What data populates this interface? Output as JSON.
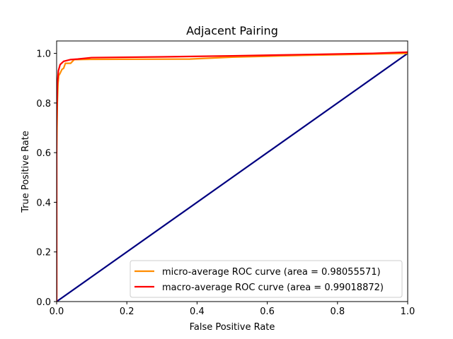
{
  "chart_data": {
    "type": "line",
    "title": "Adjacent Pairing",
    "xlabel": "False Positive Rate",
    "ylabel": "True Positive Rate",
    "xlim": [
      0.0,
      1.0
    ],
    "ylim": [
      0.0,
      1.05
    ],
    "x_ticks": [
      "0.0",
      "0.2",
      "0.4",
      "0.6",
      "0.8",
      "1.0"
    ],
    "y_ticks": [
      "0.0",
      "0.2",
      "0.4",
      "0.6",
      "0.8",
      "1.0"
    ],
    "grid": false,
    "legend_position": "lower-right",
    "series": [
      {
        "name": "micro-average ROC curve (area = 0.98055571)",
        "color": "#ff8c00",
        "points": [
          [
            0.0,
            0.0
          ],
          [
            0.0,
            0.6
          ],
          [
            0.002,
            0.8
          ],
          [
            0.004,
            0.88
          ],
          [
            0.006,
            0.91
          ],
          [
            0.01,
            0.92
          ],
          [
            0.015,
            0.935
          ],
          [
            0.02,
            0.94
          ],
          [
            0.025,
            0.96
          ],
          [
            0.04,
            0.96
          ],
          [
            0.05,
            0.975
          ],
          [
            0.1,
            0.976
          ],
          [
            0.38,
            0.977
          ],
          [
            0.5,
            0.985
          ],
          [
            0.7,
            0.992
          ],
          [
            0.85,
            0.996
          ],
          [
            1.0,
            1.0
          ]
        ]
      },
      {
        "name": "macro-average ROC curve (area = 0.99018872)",
        "color": "#ff0000",
        "points": [
          [
            0.0,
            0.0
          ],
          [
            0.0,
            0.7
          ],
          [
            0.002,
            0.87
          ],
          [
            0.005,
            0.93
          ],
          [
            0.01,
            0.955
          ],
          [
            0.02,
            0.968
          ],
          [
            0.04,
            0.975
          ],
          [
            0.06,
            0.977
          ],
          [
            0.08,
            0.98
          ],
          [
            0.1,
            0.983
          ],
          [
            0.3,
            0.986
          ],
          [
            0.5,
            0.99
          ],
          [
            0.7,
            0.995
          ],
          [
            0.9,
            1.0
          ],
          [
            1.0,
            1.005
          ]
        ]
      },
      {
        "name": "",
        "color": "#000080",
        "points": [
          [
            0.0,
            0.0
          ],
          [
            1.0,
            1.0
          ]
        ]
      }
    ]
  }
}
